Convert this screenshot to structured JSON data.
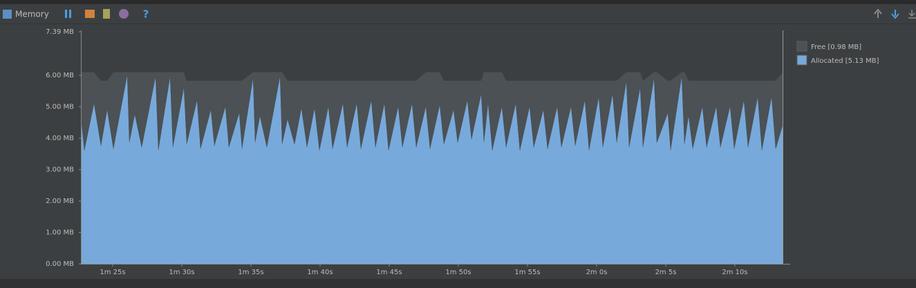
{
  "toolbar": {
    "title": "Memory"
  },
  "chart_data": {
    "type": "area",
    "stacked": true,
    "x": [
      82.7,
      82.95,
      83.65,
      84.15,
      84.6,
      85.05,
      86.05,
      86.2,
      86.6,
      87.1,
      88.1,
      88.3,
      89.15,
      89.35,
      90.15,
      90.35,
      91.1,
      91.35,
      92.1,
      92.35,
      93.15,
      93.4,
      94.15,
      94.35,
      95.15,
      95.3,
      95.65,
      96.15,
      97.1,
      97.25,
      97.65,
      98.15,
      98.65,
      99.05,
      99.6,
      99.95,
      100.6,
      100.9,
      101.65,
      101.95,
      102.65,
      102.95,
      103.7,
      104.0,
      104.65,
      104.95,
      105.65,
      105.95,
      106.65,
      106.95,
      107.65,
      107.95,
      108.65,
      108.95,
      109.65,
      109.95,
      110.65,
      110.95,
      111.65,
      111.85,
      112.15,
      112.45,
      113.15,
      113.45,
      114.15,
      114.45,
      115.15,
      115.45,
      116.15,
      116.45,
      117.15,
      117.45,
      118.15,
      118.45,
      119.15,
      119.45,
      120.15,
      120.45,
      121.15,
      121.45,
      122.15,
      122.35,
      123.15,
      123.35,
      124.15,
      124.35,
      125.15,
      125.35,
      126.15,
      126.35,
      126.65,
      126.95,
      127.65,
      127.95,
      128.65,
      128.95,
      129.65,
      129.95,
      130.65,
      130.95,
      131.65,
      131.95,
      132.65,
      132.95,
      133.45
    ],
    "series": [
      {
        "name": "Allocated [5.13 MB]",
        "color": "#78a9db",
        "values": [
          4.66,
          3.6,
          5.1,
          3.75,
          4.9,
          3.65,
          6.0,
          3.85,
          4.75,
          3.7,
          5.95,
          3.6,
          5.95,
          3.7,
          5.6,
          3.8,
          5.2,
          3.65,
          4.9,
          3.75,
          5.0,
          3.7,
          4.8,
          3.65,
          5.9,
          3.85,
          4.7,
          3.7,
          5.95,
          3.8,
          4.6,
          3.8,
          4.95,
          3.7,
          4.95,
          3.6,
          5.0,
          3.65,
          5.1,
          3.7,
          5.1,
          3.65,
          5.2,
          3.7,
          5.1,
          3.6,
          5.0,
          3.7,
          5.1,
          3.7,
          5.0,
          3.65,
          5.05,
          3.8,
          4.9,
          3.85,
          5.2,
          3.95,
          5.4,
          3.85,
          5.1,
          3.6,
          5.0,
          3.7,
          5.1,
          3.6,
          5.0,
          3.7,
          4.9,
          3.65,
          5.0,
          3.7,
          5.0,
          3.75,
          5.2,
          3.6,
          5.3,
          3.7,
          5.4,
          3.85,
          5.8,
          3.7,
          5.6,
          3.7,
          5.9,
          3.85,
          4.8,
          3.6,
          5.95,
          3.8,
          4.7,
          3.65,
          5.0,
          3.7,
          5.0,
          3.7,
          5.0,
          3.65,
          5.2,
          3.7,
          5.3,
          3.6,
          5.3,
          3.65,
          4.4
        ]
      },
      {
        "name": "Free [0.98 MB]",
        "color": "#4b5154",
        "values": [
          1.44,
          2.5,
          1.0,
          2.08,
          0.93,
          2.45,
          0.1,
          2.25,
          1.35,
          2.4,
          0.15,
          2.5,
          0.15,
          2.4,
          0.5,
          2.03,
          0.63,
          2.18,
          0.93,
          2.08,
          0.83,
          2.13,
          1.03,
          2.18,
          0.2,
          2.25,
          1.4,
          2.4,
          0.15,
          2.3,
          1.23,
          2.03,
          0.88,
          2.13,
          0.88,
          2.23,
          0.83,
          2.18,
          0.73,
          2.13,
          0.73,
          2.18,
          0.63,
          2.13,
          0.73,
          2.23,
          0.83,
          2.13,
          0.73,
          2.13,
          1.1,
          2.45,
          1.05,
          2.03,
          0.93,
          1.98,
          0.63,
          1.88,
          0.43,
          2.25,
          1.0,
          2.5,
          1.1,
          2.13,
          0.73,
          2.23,
          0.83,
          2.13,
          0.93,
          2.18,
          0.83,
          2.13,
          0.83,
          2.08,
          0.63,
          2.23,
          0.53,
          2.13,
          0.43,
          1.98,
          0.3,
          2.4,
          0.5,
          2.13,
          0.2,
          2.25,
          1.03,
          2.23,
          0.15,
          2.3,
          1.13,
          2.18,
          0.83,
          2.13,
          0.83,
          2.13,
          0.83,
          2.18,
          0.63,
          2.13,
          0.53,
          2.23,
          0.53,
          2.18,
          1.7
        ]
      }
    ],
    "xlim": [
      82.7,
      133.45
    ],
    "xticks": [
      {
        "value": 85,
        "label": "1m 25s"
      },
      {
        "value": 90,
        "label": "1m 30s"
      },
      {
        "value": 95,
        "label": "1m 35s"
      },
      {
        "value": 100,
        "label": "1m 40s"
      },
      {
        "value": 105,
        "label": "1m 45s"
      },
      {
        "value": 110,
        "label": "1m 50s"
      },
      {
        "value": 115,
        "label": "1m 55s"
      },
      {
        "value": 120,
        "label": "2m 0s"
      },
      {
        "value": 125,
        "label": "2m 5s"
      },
      {
        "value": 130,
        "label": "2m 10s"
      }
    ],
    "ylim": [
      0,
      7.39
    ],
    "yticks": [
      {
        "value": 0,
        "label": "0.00 MB"
      },
      {
        "value": 1,
        "label": "1.00 MB"
      },
      {
        "value": 2,
        "label": "2.00 MB"
      },
      {
        "value": 3,
        "label": "3.00 MB"
      },
      {
        "value": 4,
        "label": "4.00 MB"
      },
      {
        "value": 5,
        "label": "5.00 MB"
      },
      {
        "value": 6,
        "label": "6.00 MB"
      },
      {
        "value": 7.39,
        "label": "7.39 MB"
      }
    ],
    "legend": "top-right"
  }
}
